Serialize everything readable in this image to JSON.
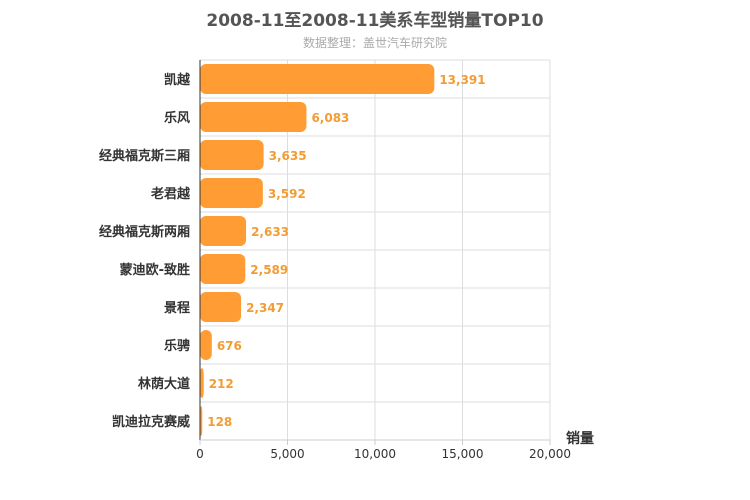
{
  "chart_data": {
    "type": "bar",
    "orientation": "horizontal",
    "title": "2008-11至2008-11美系车型销量TOP10",
    "subtitle": "数据整理：盖世汽车研究院",
    "categories": [
      "凯越",
      "乐风",
      "经典福克斯三厢",
      "老君越",
      "经典福克斯两厢",
      "蒙迪欧-致胜",
      "景程",
      "乐骋",
      "林荫大道",
      "凯迪拉克赛威"
    ],
    "values": [
      13391,
      6083,
      3635,
      3592,
      2633,
      2589,
      2347,
      676,
      212,
      128
    ],
    "value_labels": [
      "13,391",
      "6,083",
      "3,635",
      "3,592",
      "2,633",
      "2,589",
      "2,347",
      "676",
      "212",
      "128"
    ],
    "xlabel": "销量",
    "ylabel": "",
    "xlim": [
      0,
      20000
    ],
    "xticks": [
      0,
      5000,
      10000,
      15000,
      20000
    ],
    "xtick_labels": [
      "0",
      "5,000",
      "10,000",
      "15,000",
      "20,000"
    ],
    "grid": true,
    "bar_color": "#ff9c33",
    "label_color": "#f39c35"
  }
}
